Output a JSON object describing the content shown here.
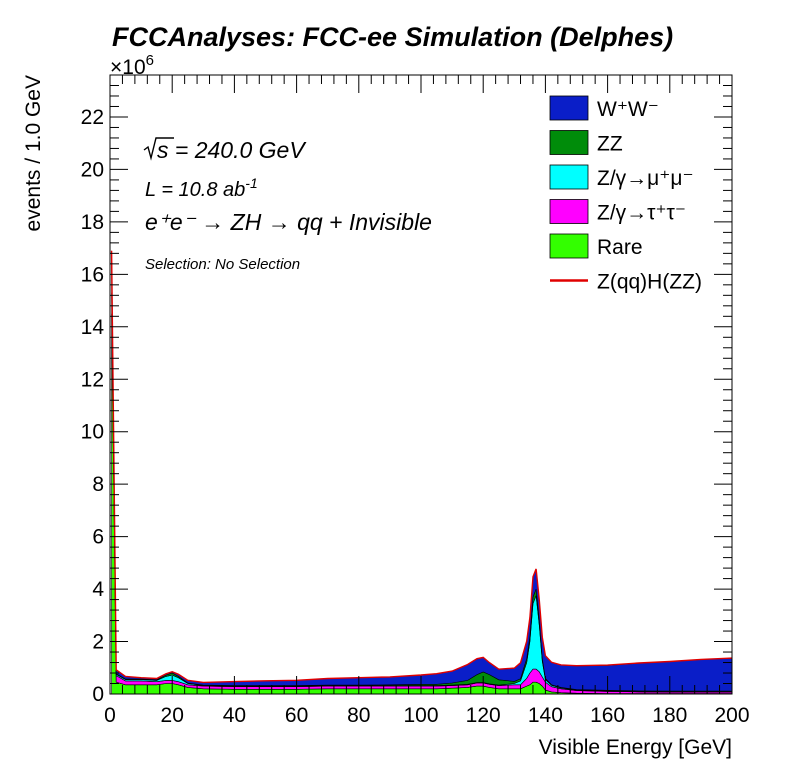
{
  "chart_data": {
    "type": "area",
    "stacked": true,
    "histogram": true,
    "title": "FCCAnalyses: FCC-ee Simulation (Delphes)",
    "xlabel": "Visible Energy [GeV]",
    "ylabel": "events / 1.0 GeV",
    "y_multiplier_label": "×10",
    "y_multiplier_exp": "6",
    "xlim": [
      0,
      200
    ],
    "ylim": [
      0,
      23.6
    ],
    "x_ticks": [
      "0",
      "20",
      "40",
      "60",
      "80",
      "100",
      "120",
      "140",
      "160",
      "180",
      "200"
    ],
    "y_ticks": [
      "0",
      "2",
      "4",
      "6",
      "8",
      "10",
      "12",
      "14",
      "16",
      "18",
      "20",
      "22"
    ],
    "annotations": {
      "sqrt_s": "s",
      "energy": " = 240.0 GeV",
      "lumi_prefix": "L = 10.8 ab",
      "lumi_exp": "-1",
      "process": "e⁺e⁻ → ZH → qq + Invisible",
      "selection": "Selection: No Selection"
    },
    "legend_position": "top-right",
    "legend": [
      {
        "label": "W⁺W⁻",
        "color": "#0A1EC8",
        "style": "fill"
      },
      {
        "label": "ZZ",
        "color": "#008C0A",
        "style": "fill"
      },
      {
        "label": "Z/γ→μ⁺μ⁻",
        "color": "#00FFFF",
        "style": "fill"
      },
      {
        "label": "Z/γ→τ⁺τ⁻",
        "color": "#FF00FF",
        "style": "fill"
      },
      {
        "label": "Rare",
        "color": "#33FF00",
        "style": "fill"
      },
      {
        "label": "Z(qq)H(ZZ)",
        "color": "#E00000",
        "style": "line"
      }
    ],
    "x": [
      0.5,
      2,
      5,
      10,
      15,
      18,
      20,
      22,
      25,
      30,
      40,
      50,
      60,
      70,
      80,
      90,
      100,
      105,
      110,
      115,
      118,
      120,
      122,
      125,
      130,
      132,
      134,
      135,
      136,
      137,
      138,
      139,
      140,
      142,
      145,
      150,
      160,
      170,
      180,
      190,
      200
    ],
    "series": [
      {
        "name": "Rare",
        "color": "#33FF00",
        "values": [
          14.5,
          0.45,
          0.35,
          0.35,
          0.35,
          0.4,
          0.4,
          0.35,
          0.25,
          0.2,
          0.18,
          0.18,
          0.18,
          0.2,
          0.2,
          0.2,
          0.2,
          0.2,
          0.22,
          0.25,
          0.3,
          0.3,
          0.25,
          0.2,
          0.2,
          0.2,
          0.3,
          0.35,
          0.45,
          0.45,
          0.4,
          0.3,
          0.15,
          0.08,
          0.05,
          0.03,
          0.02,
          0.02,
          0.02,
          0.02,
          0.02
        ]
      },
      {
        "name": "Z/γ→τ⁺τ⁻",
        "color": "#FF00FF",
        "values": [
          0.8,
          0.25,
          0.15,
          0.15,
          0.12,
          0.12,
          0.12,
          0.12,
          0.1,
          0.1,
          0.1,
          0.1,
          0.1,
          0.1,
          0.1,
          0.1,
          0.1,
          0.1,
          0.1,
          0.1,
          0.12,
          0.12,
          0.12,
          0.12,
          0.15,
          0.15,
          0.3,
          0.45,
          0.5,
          0.5,
          0.45,
          0.35,
          0.3,
          0.2,
          0.15,
          0.1,
          0.08,
          0.06,
          0.05,
          0.05,
          0.05
        ]
      },
      {
        "name": "Z/γ→μ⁺μ⁻",
        "color": "#00FFFF",
        "values": [
          1.2,
          0.05,
          0.05,
          0.05,
          0.05,
          0.15,
          0.2,
          0.15,
          0.05,
          0.02,
          0.02,
          0.02,
          0.02,
          0.02,
          0.02,
          0.02,
          0.02,
          0.02,
          0.02,
          0.02,
          0.02,
          0.02,
          0.02,
          0.02,
          0.05,
          0.15,
          0.6,
          1.2,
          2.5,
          2.8,
          1.8,
          0.6,
          0.1,
          0.05,
          0.03,
          0.02,
          0.02,
          0.02,
          0.02,
          0.02,
          0.02
        ]
      },
      {
        "name": "ZZ",
        "color": "#008C0A",
        "values": [
          0.1,
          0.02,
          0.02,
          0.02,
          0.02,
          0.05,
          0.08,
          0.05,
          0.02,
          0.02,
          0.02,
          0.02,
          0.02,
          0.02,
          0.02,
          0.03,
          0.05,
          0.05,
          0.08,
          0.15,
          0.3,
          0.4,
          0.35,
          0.2,
          0.08,
          0.08,
          0.15,
          0.2,
          0.25,
          0.25,
          0.2,
          0.1,
          0.05,
          0.02,
          0.02,
          0.02,
          0.02,
          0.02,
          0.02,
          0.02,
          0.02
        ]
      },
      {
        "name": "W⁺W⁻",
        "color": "#0A1EC8",
        "values": [
          0.3,
          0.15,
          0.1,
          0.05,
          0.05,
          0.05,
          0.05,
          0.08,
          0.1,
          0.1,
          0.15,
          0.18,
          0.2,
          0.25,
          0.28,
          0.3,
          0.35,
          0.4,
          0.45,
          0.6,
          0.6,
          0.55,
          0.45,
          0.4,
          0.5,
          0.6,
          0.65,
          0.7,
          0.75,
          0.75,
          0.75,
          0.8,
          0.85,
          0.85,
          0.85,
          0.9,
          0.95,
          1.05,
          1.12,
          1.2,
          1.25
        ]
      }
    ],
    "signal": {
      "name": "Z(qq)H(ZZ)",
      "color": "#E00000",
      "values": [
        0.002,
        0.002,
        0.002,
        0.002,
        0.002,
        0.002,
        0.002,
        0.002,
        0.002,
        0.002,
        0.002,
        0.002,
        0.002,
        0.002,
        0.002,
        0.002,
        0.003,
        0.003,
        0.004,
        0.005,
        0.006,
        0.006,
        0.006,
        0.006,
        0.008,
        0.01,
        0.012,
        0.015,
        0.02,
        0.02,
        0.02,
        0.015,
        0.012,
        0.01,
        0.01,
        0.01,
        0.01,
        0.01,
        0.01,
        0.01,
        0.01
      ]
    }
  }
}
